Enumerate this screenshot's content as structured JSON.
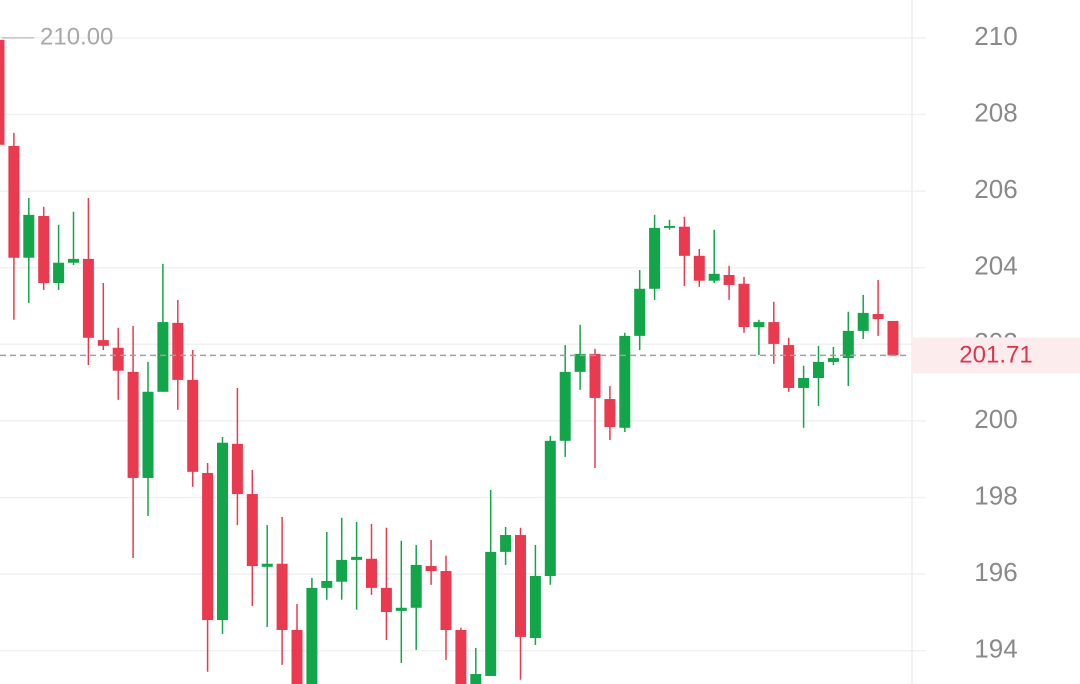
{
  "chart_data": {
    "type": "candlestick",
    "open": [
      209.95,
      207.18,
      204.26,
      205.35,
      203.6,
      204.13,
      204.23,
      202.11,
      201.91,
      201.28,
      198.51,
      200.76,
      202.56,
      201.07,
      198.64,
      194.8,
      199.4,
      198.09,
      196.19,
      196.27,
      194.54,
      193.13,
      195.64,
      195.8,
      196.37,
      196.4,
      195.64,
      195.04,
      195.12,
      196.21,
      196.08,
      194.54,
      193.13,
      193.34,
      196.58,
      197.02,
      194.33,
      195.95,
      199.48,
      201.28,
      201.75,
      200.57,
      199.82,
      202.22,
      203.45,
      205.04,
      205.07,
      204.31,
      203.66,
      203.81,
      203.58,
      202.45,
      202.58,
      201.98,
      200.86,
      201.12,
      201.54,
      201.64,
      202.35,
      202.79,
      202.61
    ],
    "high": [
      210.0,
      207.52,
      205.82,
      205.59,
      205.12,
      205.46,
      205.82,
      203.6,
      202.43,
      202.48,
      201.54,
      204.1,
      203.16,
      201.85,
      198.9,
      199.58,
      200.86,
      198.72,
      197.28,
      197.49,
      195.22,
      195.9,
      197.1,
      197.47,
      197.36,
      197.31,
      197.21,
      196.87,
      196.76,
      196.89,
      196.48,
      194.6,
      194.07,
      198.2,
      197.23,
      197.21,
      196.76,
      199.61,
      201.98,
      202.51,
      201.88,
      200.91,
      202.3,
      203.94,
      205.38,
      205.25,
      205.33,
      204.49,
      204.99,
      204.05,
      203.76,
      202.64,
      203.11,
      202.17,
      201.44,
      201.96,
      201.93,
      202.85,
      203.29,
      203.68,
      202.61
    ],
    "low": [
      207.21,
      202.64,
      203.08,
      203.42,
      203.42,
      204.07,
      201.46,
      201.85,
      200.55,
      196.42,
      197.52,
      200.76,
      200.29,
      198.28,
      193.45,
      194.44,
      197.28,
      195.17,
      194.62,
      193.63,
      193.13,
      193.13,
      195.33,
      195.33,
      195.07,
      195.46,
      194.28,
      193.68,
      194.02,
      195.72,
      193.76,
      193.13,
      193.13,
      193.34,
      196.24,
      193.24,
      194.15,
      195.72,
      199.06,
      200.81,
      198.77,
      199.5,
      199.71,
      201.85,
      203.16,
      204.99,
      203.52,
      203.5,
      203.6,
      203.16,
      202.3,
      201.72,
      201.49,
      200.76,
      199.82,
      200.39,
      201.46,
      200.91,
      202.14,
      202.22,
      201.71
    ],
    "close": [
      207.21,
      204.26,
      205.38,
      203.6,
      204.13,
      204.23,
      202.17,
      201.96,
      201.31,
      198.51,
      200.76,
      202.58,
      201.07,
      198.67,
      194.8,
      199.43,
      198.09,
      196.21,
      196.27,
      194.54,
      193.13,
      195.64,
      195.82,
      196.37,
      196.45,
      195.64,
      195.01,
      195.12,
      196.24,
      196.08,
      194.54,
      193.13,
      193.39,
      196.58,
      197.02,
      194.36,
      195.95,
      199.48,
      201.28,
      201.75,
      200.6,
      199.84,
      202.22,
      203.45,
      205.04,
      205.09,
      204.31,
      203.66,
      203.84,
      203.55,
      202.45,
      202.58,
      202.01,
      200.86,
      201.12,
      201.54,
      201.64,
      202.35,
      202.82,
      202.66,
      201.71
    ],
    "up_color": "#13a54a",
    "down_color": "#ea3a50",
    "ylim": [
      193.13,
      210.99
    ],
    "yticks": [
      194,
      196,
      198,
      200,
      202,
      204,
      206,
      208,
      210
    ],
    "grid": true,
    "last_price": 201.71,
    "max_marker": {
      "value": 210,
      "label": "210.00"
    }
  }
}
